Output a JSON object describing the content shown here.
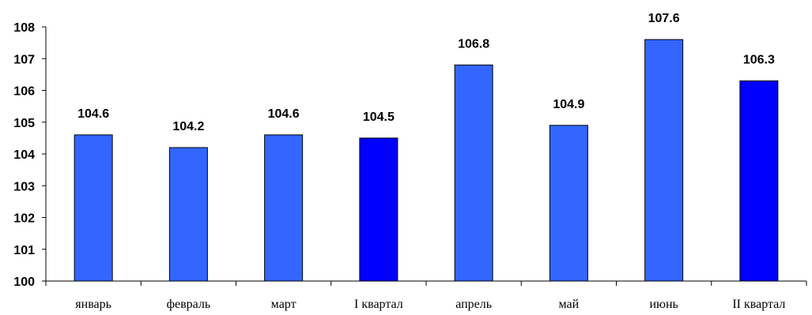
{
  "chart_data": {
    "type": "bar",
    "categories": [
      "январь",
      "февраль",
      "март",
      "I квартал",
      "апрель",
      "май",
      "июнь",
      "II квартал"
    ],
    "values": [
      104.6,
      104.2,
      104.6,
      104.5,
      106.8,
      104.9,
      107.6,
      106.3
    ],
    "value_labels": [
      "104.6",
      "104.2",
      "104.6",
      "104.5",
      "106.8",
      "104.9",
      "107.6",
      "106.3"
    ],
    "bar_colors": [
      "#3366ff",
      "#3366ff",
      "#3366ff",
      "#0000ff",
      "#3366ff",
      "#3366ff",
      "#3366ff",
      "#0000ff"
    ],
    "yticks": [
      "100",
      "101",
      "102",
      "103",
      "104",
      "105",
      "106",
      "107",
      "108"
    ],
    "ylim": [
      100,
      108
    ],
    "grid": false,
    "legend": "none",
    "title": "",
    "xlabel": "",
    "ylabel": ""
  }
}
